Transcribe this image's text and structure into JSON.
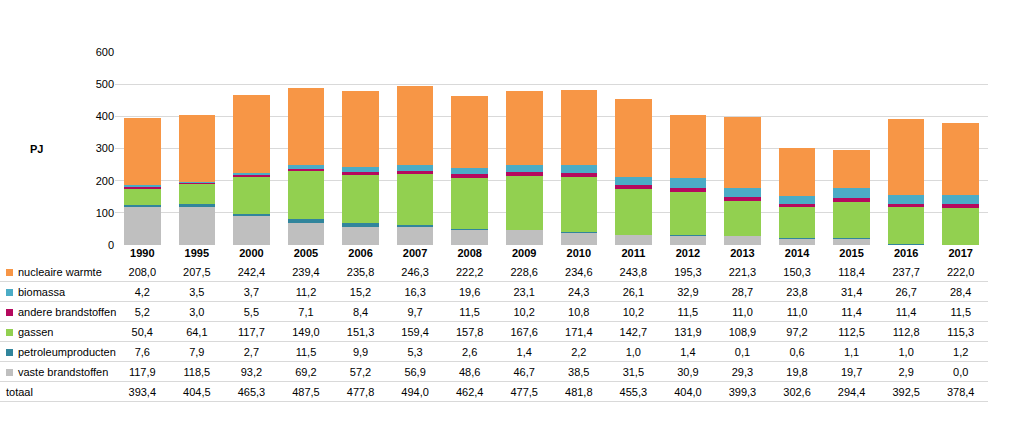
{
  "chart_data": {
    "type": "bar",
    "stacked": true,
    "grid": true,
    "ylabel": "PJ",
    "ylim": [
      0,
      600
    ],
    "yticks": [
      0,
      100,
      200,
      300,
      400,
      500,
      600
    ],
    "categories": [
      "1990",
      "1995",
      "2000",
      "2005",
      "2006",
      "2007",
      "2008",
      "2009",
      "2010",
      "2011",
      "2012",
      "2013",
      "2014",
      "2015",
      "2016",
      "2017"
    ],
    "series": [
      {
        "name": "vaste brandstoffen",
        "color": "#bfbfbf",
        "values": [
          117.9,
          118.5,
          93.2,
          69.2,
          57.2,
          56.9,
          48.6,
          46.7,
          38.5,
          31.5,
          30.9,
          29.3,
          19.8,
          19.7,
          2.9,
          0.0
        ],
        "value_labels": [
          "117,9",
          "118,5",
          "93,2",
          "69,2",
          "57,2",
          "56,9",
          "48,6",
          "46,7",
          "38,5",
          "31,5",
          "30,9",
          "29,3",
          "19,8",
          "19,7",
          "2,9",
          "0,0"
        ]
      },
      {
        "name": "petroleumproducten",
        "color": "#31859c",
        "values": [
          7.6,
          7.9,
          2.7,
          11.5,
          9.9,
          5.3,
          2.6,
          1.4,
          2.2,
          1.0,
          1.4,
          0.1,
          0.6,
          1.1,
          1.0,
          1.2
        ],
        "value_labels": [
          "7,6",
          "7,9",
          "2,7",
          "11,5",
          "9,9",
          "5,3",
          "2,6",
          "1,4",
          "2,2",
          "1,0",
          "1,4",
          "0,1",
          "0,6",
          "1,1",
          "1,0",
          "1,2"
        ]
      },
      {
        "name": "gassen",
        "color": "#92d050",
        "values": [
          50.4,
          64.1,
          117.7,
          149.0,
          151.3,
          159.4,
          157.8,
          167.6,
          171.4,
          142.7,
          131.9,
          108.9,
          97.2,
          112.5,
          112.8,
          115.3
        ],
        "value_labels": [
          "50,4",
          "64,1",
          "117,7",
          "149,0",
          "151,3",
          "159,4",
          "157,8",
          "167,6",
          "171,4",
          "142,7",
          "131,9",
          "108,9",
          "97,2",
          "112,5",
          "112,8",
          "115,3"
        ]
      },
      {
        "name": "andere brandstoffen",
        "color": "#b5095e",
        "values": [
          5.2,
          3.0,
          5.5,
          7.1,
          8.4,
          9.7,
          11.5,
          10.2,
          10.8,
          10.2,
          11.5,
          11.0,
          11.0,
          11.4,
          11.4,
          11.5
        ],
        "value_labels": [
          "5,2",
          "3,0",
          "5,5",
          "7,1",
          "8,4",
          "9,7",
          "11,5",
          "10,2",
          "10,8",
          "10,2",
          "11,5",
          "11,0",
          "11,0",
          "11,4",
          "11,4",
          "11,5"
        ]
      },
      {
        "name": "biomassa",
        "color": "#4bacc6",
        "values": [
          4.2,
          3.5,
          3.7,
          11.2,
          15.2,
          16.3,
          19.6,
          23.1,
          24.3,
          26.1,
          32.9,
          28.7,
          23.8,
          31.4,
          26.7,
          28.4
        ],
        "value_labels": [
          "4,2",
          "3,5",
          "3,7",
          "11,2",
          "15,2",
          "16,3",
          "19,6",
          "23,1",
          "24,3",
          "26,1",
          "32,9",
          "28,7",
          "23,8",
          "31,4",
          "26,7",
          "28,4"
        ]
      },
      {
        "name": "nucleaire warmte",
        "color": "#f79646",
        "values": [
          208.0,
          207.5,
          242.4,
          239.4,
          235.8,
          246.3,
          222.2,
          228.6,
          234.6,
          243.8,
          195.3,
          221.3,
          150.3,
          118.4,
          237.7,
          222.0
        ],
        "value_labels": [
          "208,0",
          "207,5",
          "242,4",
          "239,4",
          "235,8",
          "246,3",
          "222,2",
          "228,6",
          "234,6",
          "243,8",
          "195,3",
          "221,3",
          "150,3",
          "118,4",
          "237,7",
          "222,0"
        ]
      }
    ],
    "totals": {
      "name": "totaal",
      "values": [
        393.4,
        404.5,
        465.3,
        487.5,
        477.8,
        494.0,
        462.4,
        477.5,
        481.8,
        455.3,
        404.0,
        399.3,
        302.6,
        294.4,
        392.5,
        378.4
      ],
      "value_labels": [
        "393,4",
        "404,5",
        "465,3",
        "487,5",
        "477,8",
        "494,0",
        "462,4",
        "477,5",
        "481,8",
        "455,3",
        "404,0",
        "399,3",
        "302,6",
        "294,4",
        "392,5",
        "378,4"
      ]
    }
  }
}
